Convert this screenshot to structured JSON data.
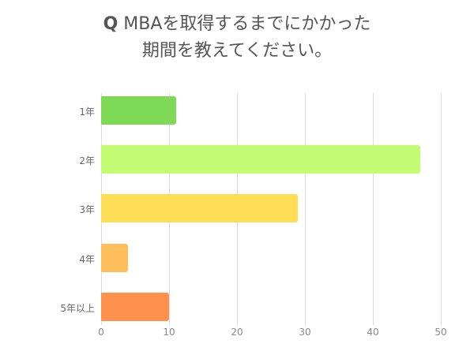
{
  "title": {
    "line1_prefix": "Q",
    "line1_rest": " MBAを取得するまでにかかった",
    "line2": "期間を教えてください。"
  },
  "chart_data": {
    "type": "bar",
    "orientation": "horizontal",
    "title": "Q MBAを取得するまでにかかった期間を教えてください。",
    "categories": [
      "1年",
      "2年",
      "3年",
      "4年",
      "5年以上"
    ],
    "values": [
      11,
      47,
      29,
      4,
      10
    ],
    "colors": [
      "#7ed957",
      "#c3fc72",
      "#ffdd57",
      "#ffbe5c",
      "#ff914d"
    ],
    "xlabel": "",
    "ylabel": "",
    "xlim": [
      0,
      50
    ],
    "xticks": [
      "0",
      "10",
      "20",
      "30",
      "40",
      "50"
    ],
    "grid": true,
    "legend": "none"
  }
}
